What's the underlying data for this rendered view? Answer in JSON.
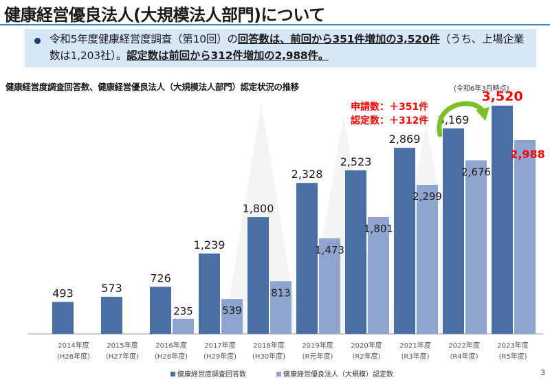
{
  "title": "健康経営優良法人(大規模法人部門)について",
  "summary": {
    "p1": "令和5年度健康経営度調査（第10回）の",
    "p2": "回答数は、前回から351件増加の3,520件",
    "p3": "（うち、上場企業数は1,203社）。",
    "p4": "認定数は前回から312件増加の2,988件。"
  },
  "page_number": "3",
  "colors": {
    "series1": "#4a6fa5",
    "series2": "#8fa4cf",
    "highlight": "#ff0000",
    "arrow": "#7bbf2a",
    "accent_rule": "#3f7fbf",
    "callout_bg": "#d6e6f6"
  },
  "chart_data": {
    "type": "bar",
    "title": "健康経営度調査回答数、健康経営優良法人（大規模法人部門）認定状況の推移",
    "note": "(令和6年3月時点)",
    "categories": [
      "2014年度",
      "2015年度",
      "2016年度",
      "2017年度",
      "2018年度",
      "2019年度",
      "2020年度",
      "2021年度",
      "2022年度",
      "2023年度"
    ],
    "subcategories": [
      "(H26年度)",
      "(H27年度)",
      "(H28年度)",
      "(H29年度)",
      "(H30年度)",
      "(R元年度)",
      "(R2年度)",
      "(R3年度)",
      "(R4年度)",
      "(R5年度)"
    ],
    "series": [
      {
        "name": "健康経営度調査回答数",
        "values": [
          493,
          573,
          726,
          1239,
          1800,
          2328,
          2523,
          2869,
          3169,
          3520
        ],
        "labels": [
          "493",
          "573",
          "726",
          "1,239",
          "1,800",
          "2,328",
          "2,523",
          "2,869",
          "3,169",
          "3,520"
        ]
      },
      {
        "name": "健康経営優良法人（大規模）認定数",
        "values": [
          null,
          null,
          235,
          539,
          813,
          1473,
          1801,
          2299,
          2676,
          2988
        ],
        "labels": [
          null,
          null,
          "235",
          "539",
          "813",
          "1,473",
          "1,801",
          "2,299",
          "2,676",
          "2,988"
        ]
      }
    ],
    "annotation": {
      "applications": "申請数：＋351件",
      "certified": "認定数：＋312件"
    },
    "ylim": [
      0,
      3700
    ],
    "legend": "bottom"
  }
}
